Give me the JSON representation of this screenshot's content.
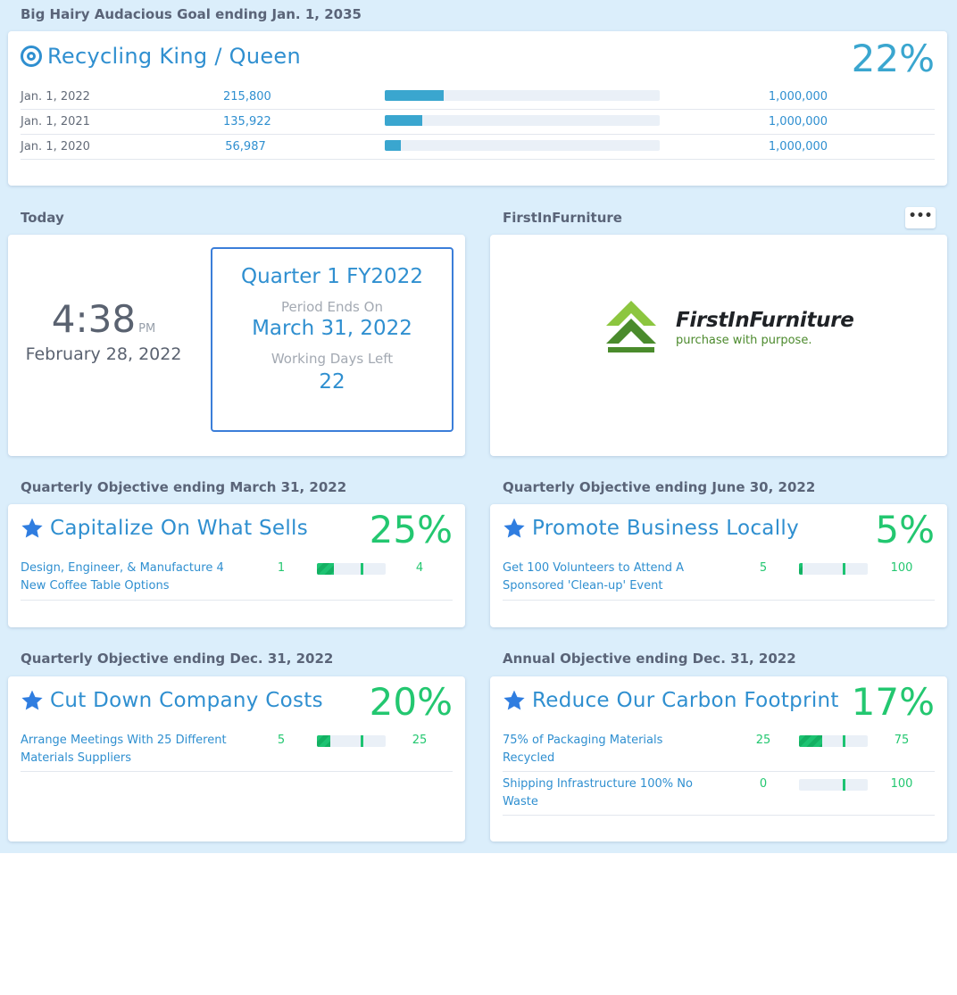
{
  "bhag": {
    "section_title": "Big Hairy Audacious Goal ending Jan. 1, 2035",
    "icon": "target-icon",
    "title": "Recycling King / Queen",
    "percent": "22%",
    "rows": [
      {
        "date": "Jan. 1, 2022",
        "value": "215,800",
        "target": "1,000,000",
        "progress": 0.2158
      },
      {
        "date": "Jan. 1, 2021",
        "value": "135,922",
        "target": "1,000,000",
        "progress": 0.1359
      },
      {
        "date": "Jan. 1, 2020",
        "value": "56,987",
        "target": "1,000,000",
        "progress": 0.057
      }
    ]
  },
  "today": {
    "section_title": "Today",
    "time": "4:38",
    "ampm": "PM",
    "date": "February 28, 2022",
    "quarter": "Quarter 1 FY2022",
    "period_label": "Period Ends On",
    "period_end": "March 31, 2022",
    "days_label": "Working Days Left",
    "days_left": "22"
  },
  "company": {
    "section_title": "FirstInFurniture",
    "more_label": "•••",
    "logo_name": "FirstInFurniture",
    "logo_tagline": "purchase with purpose."
  },
  "objectives": [
    {
      "section_title": "Quarterly Objective ending March 31, 2022",
      "title": "Capitalize On What Sells",
      "percent": "25%",
      "key_results": [
        {
          "name": "Design, Engineer, & Manufacture 4 New Coffee Table Options",
          "current": "1",
          "target": "4",
          "progress": 0.25
        }
      ]
    },
    {
      "section_title": "Quarterly Objective ending June 30, 2022",
      "title": "Promote Business Locally",
      "percent": "5%",
      "key_results": [
        {
          "name": "Get 100 Volunteers to Attend A Sponsored 'Clean-up' Event",
          "current": "5",
          "target": "100",
          "progress": 0.05
        }
      ]
    },
    {
      "section_title": "Quarterly Objective ending Dec. 31, 2022",
      "title": "Cut Down Company Costs",
      "percent": "20%",
      "key_results": [
        {
          "name": "Arrange Meetings With 25 Different Materials Suppliers",
          "current": "5",
          "target": "25",
          "progress": 0.2
        }
      ]
    },
    {
      "section_title": "Annual Objective ending Dec. 31, 2022",
      "title": "Reduce Our Carbon Footprint",
      "percent": "17%",
      "key_results": [
        {
          "name": "75% of Packaging Materials Recycled",
          "current": "25",
          "target": "75",
          "progress": 0.3333
        },
        {
          "name": "Shipping Infrastructure 100% No Waste",
          "current": "0",
          "target": "100",
          "progress": 0.0
        }
      ]
    }
  ],
  "colors": {
    "background": "#dbeefb",
    "title_blue": "#2f8fd0",
    "bhag_accent": "#3aa6cf",
    "objective_green": "#23c770",
    "quarter_border": "#3b7ed9"
  }
}
